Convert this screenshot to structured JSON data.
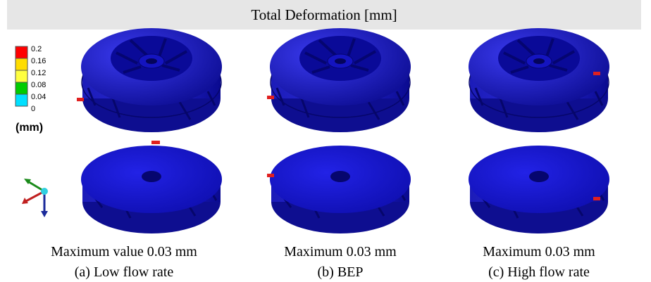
{
  "title": "Total Deformation [mm]",
  "legend": {
    "ticks": [
      "0.2",
      "0.16",
      "0.12",
      "0.08",
      "0.04",
      "0"
    ],
    "unit": "(mm)"
  },
  "panels": [
    {
      "max_label": "Maximum value 0.03 mm",
      "caption": "(a) Low flow rate"
    },
    {
      "max_label": "Maximum 0.03 mm",
      "caption": "(b) BEP"
    },
    {
      "max_label": "Maximum 0.03 mm",
      "caption": "(c) High flow rate"
    }
  ]
}
